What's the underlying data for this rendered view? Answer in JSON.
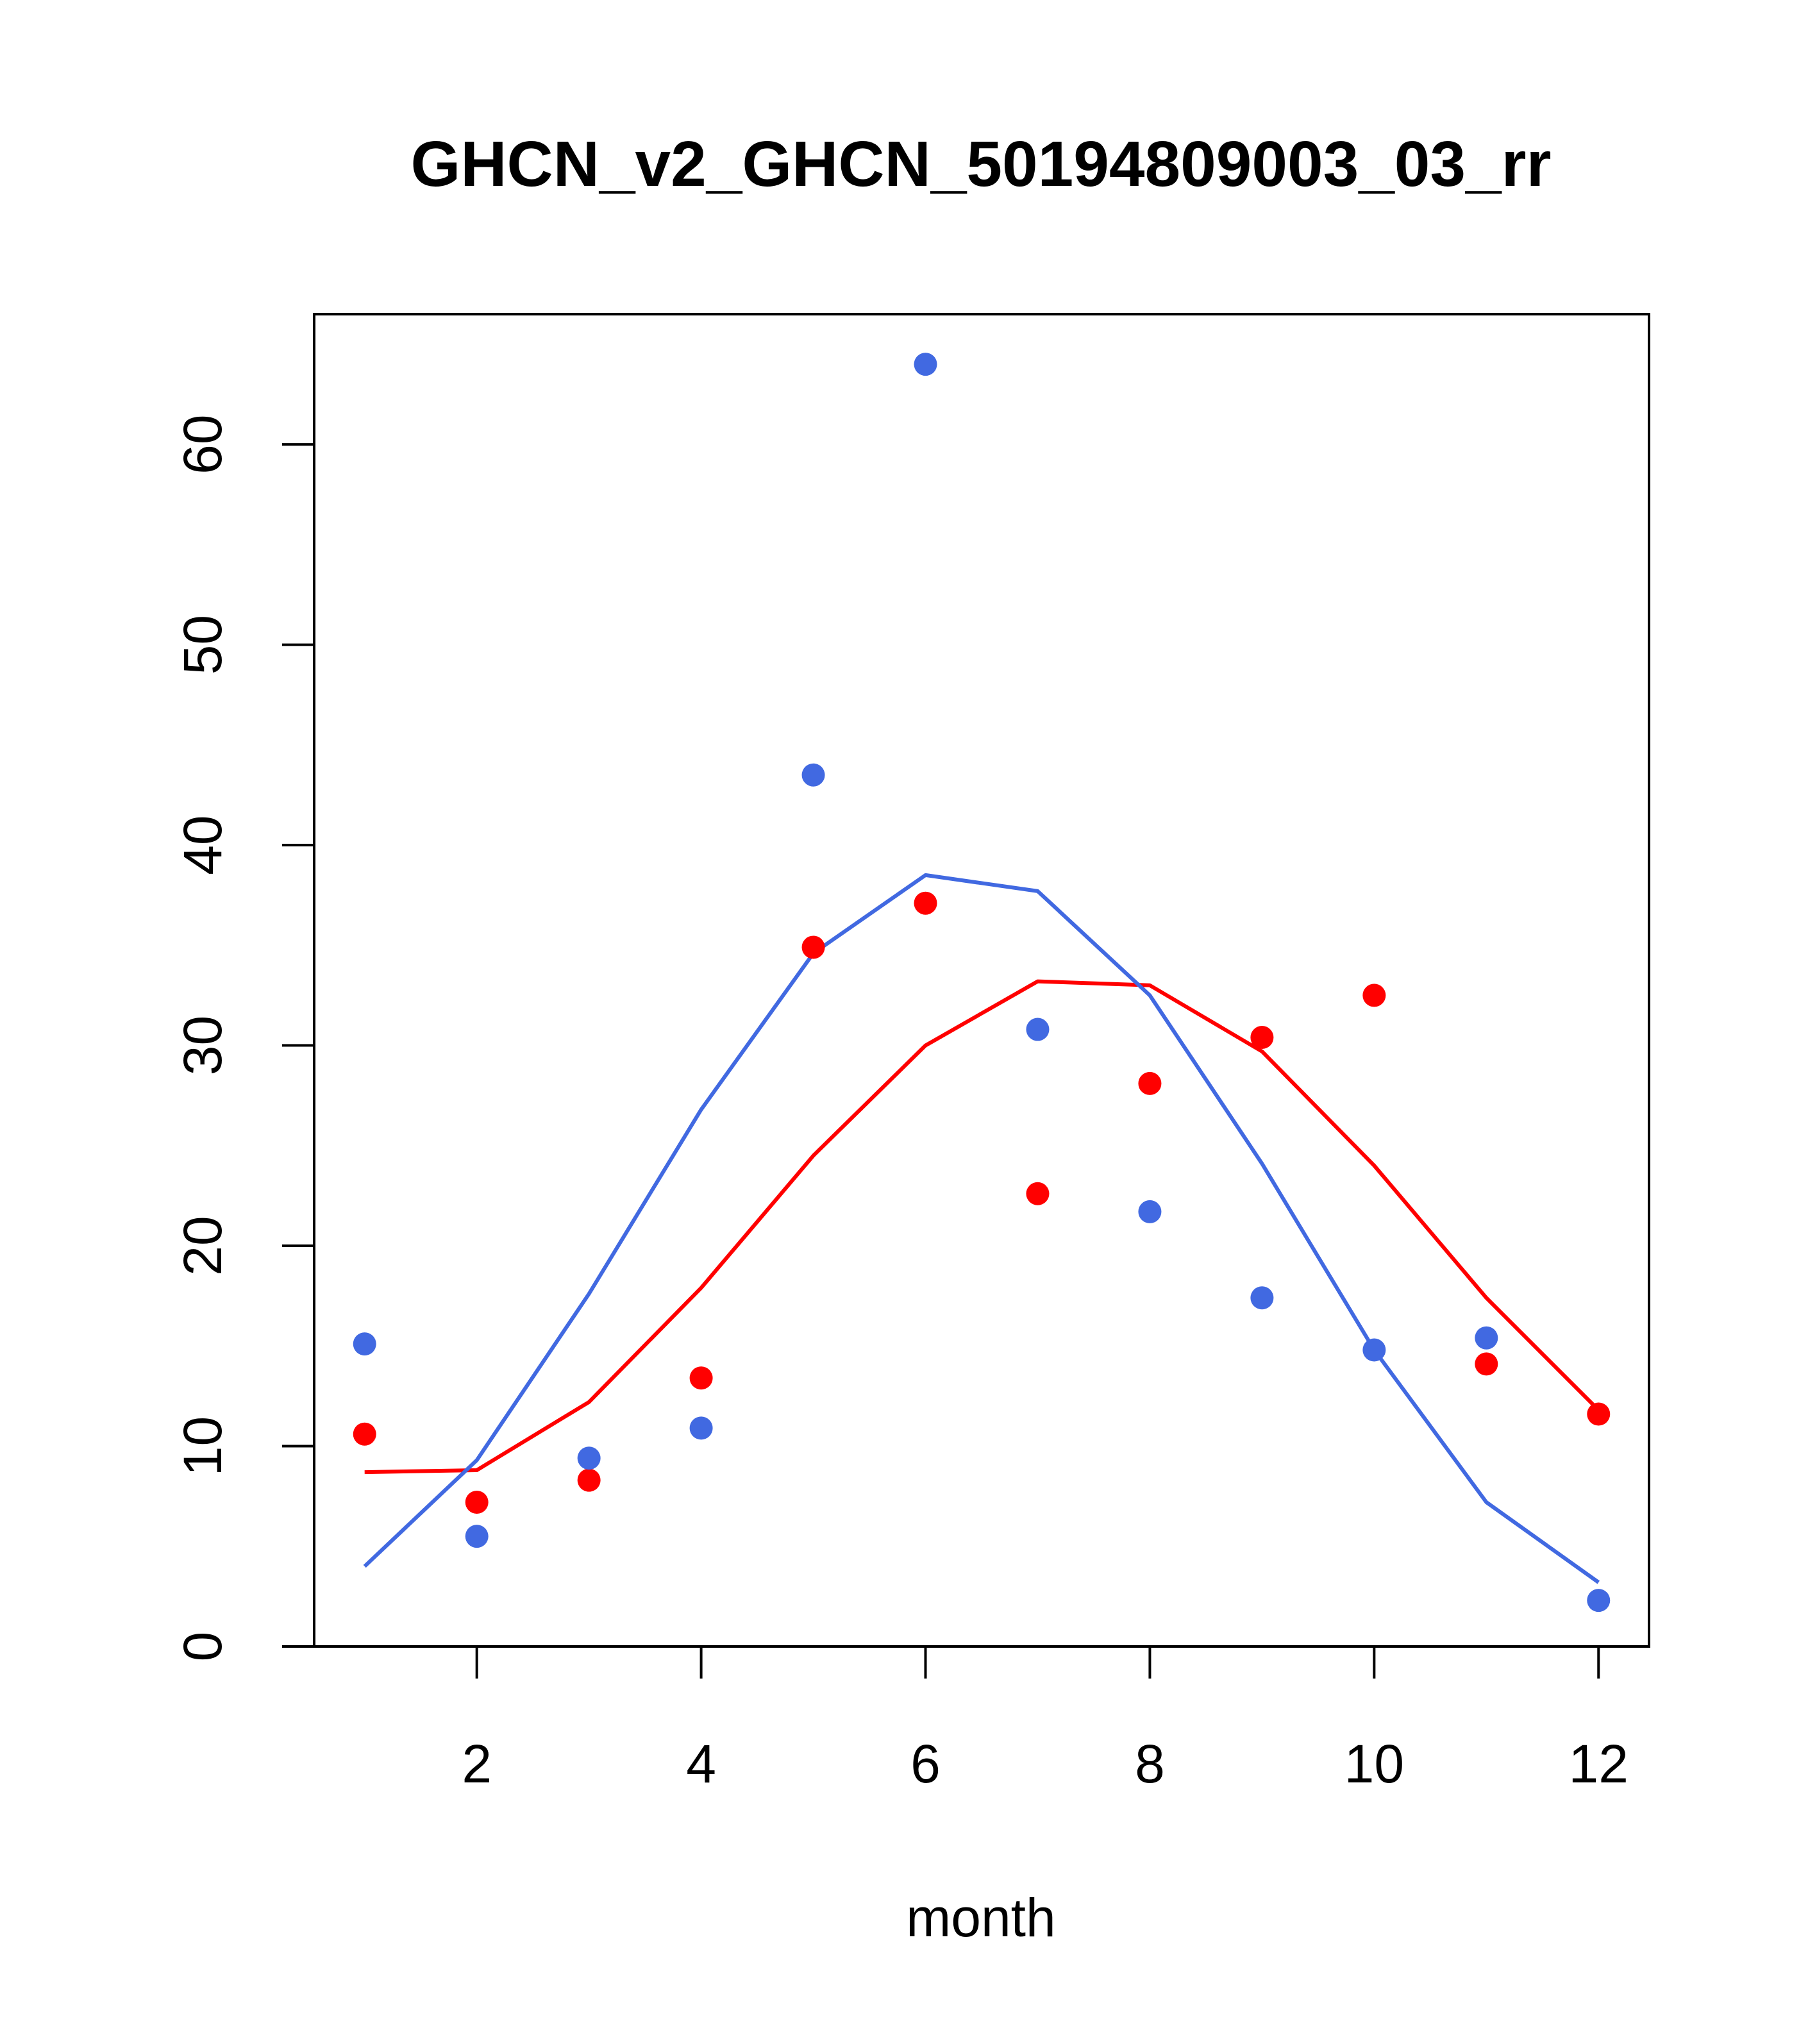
{
  "chart_data": {
    "type": "scatter",
    "title": "GHCN_v2_GHCN_50194809003_03_rr",
    "xlabel": "month",
    "ylabel": "",
    "xlim": [
      0.55,
      12.45
    ],
    "ylim": [
      0,
      66.5
    ],
    "xticks": [
      2,
      4,
      6,
      8,
      10,
      12
    ],
    "yticks": [
      0,
      10,
      20,
      30,
      40,
      50,
      60
    ],
    "grid": false,
    "x": [
      1,
      2,
      3,
      4,
      5,
      6,
      7,
      8,
      9,
      10,
      11,
      12
    ],
    "series": [
      {
        "color": "#ff0000",
        "points": [
          10.6,
          7.2,
          8.3,
          13.4,
          34.9,
          37.1,
          22.6,
          28.1,
          30.4,
          32.5,
          14.1,
          11.6
        ],
        "line": [
          8.7,
          8.8,
          12.2,
          17.9,
          24.5,
          30.0,
          33.2,
          33.0,
          29.7,
          24.0,
          17.4,
          11.8
        ]
      },
      {
        "color": "#4169e1",
        "points": [
          15.1,
          5.5,
          9.4,
          10.9,
          43.5,
          64.0,
          30.8,
          21.7,
          17.4,
          14.8,
          15.4,
          2.3
        ],
        "line": [
          4.0,
          9.3,
          17.6,
          26.8,
          34.6,
          38.5,
          37.7,
          32.5,
          24.1,
          14.8,
          7.2,
          3.2
        ]
      }
    ]
  }
}
